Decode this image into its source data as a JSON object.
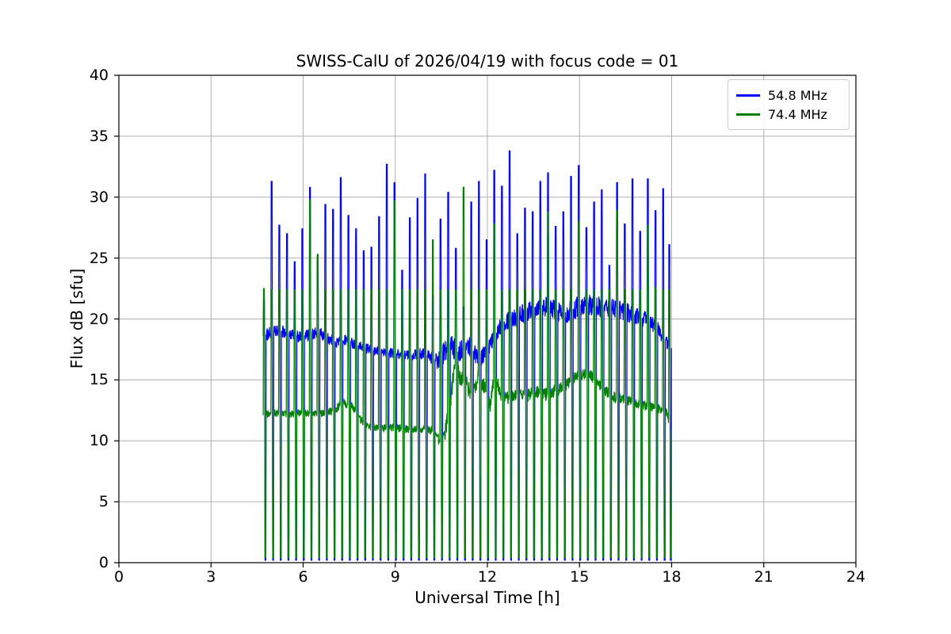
{
  "chart_data": {
    "type": "line",
    "title": "SWISS-CalU of 2026/04/19 with focus code = 01",
    "xlabel": "Universal Time [h]",
    "ylabel": "Flux dB [sfu]",
    "xlim": [
      0,
      24
    ],
    "ylim": [
      0,
      40
    ],
    "xticks": [
      0,
      3,
      6,
      9,
      12,
      15,
      18,
      21,
      24
    ],
    "yticks": [
      0,
      5,
      10,
      15,
      20,
      25,
      30,
      35,
      40
    ],
    "grid": true,
    "grid_color": "#b0b0b0",
    "background_color": "#ffffff",
    "axes_color": "#000000",
    "time_coverage_hours": {
      "start": 4.7,
      "end": 18.0
    },
    "legend": {
      "position": "upper right",
      "entries": [
        {
          "label": "54.8 MHz",
          "color": "#0000ff"
        },
        {
          "label": "74.4 MHz",
          "color": "#008000"
        }
      ]
    },
    "calibration_events": [
      [
        4.7,
        21.5,
        22.5
      ],
      [
        4.95,
        31.3,
        22.4
      ],
      [
        5.2,
        27.7,
        22.4
      ],
      [
        5.45,
        27.0,
        22.4
      ],
      [
        5.7,
        24.7,
        22.4
      ],
      [
        5.95,
        27.4,
        22.4
      ],
      [
        6.2,
        30.8,
        29.8
      ],
      [
        6.45,
        25.0,
        25.3
      ],
      [
        6.7,
        29.4,
        22.4
      ],
      [
        6.95,
        29.0,
        22.4
      ],
      [
        7.2,
        31.6,
        22.4
      ],
      [
        7.45,
        28.5,
        22.4
      ],
      [
        7.7,
        27.4,
        22.4
      ],
      [
        7.95,
        25.6,
        22.4
      ],
      [
        8.2,
        25.9,
        22.4
      ],
      [
        8.45,
        28.4,
        22.4
      ],
      [
        8.7,
        32.7,
        22.4
      ],
      [
        8.95,
        31.2,
        29.7
      ],
      [
        9.2,
        24.0,
        22.4
      ],
      [
        9.45,
        28.3,
        22.4
      ],
      [
        9.7,
        29.9,
        22.4
      ],
      [
        9.95,
        31.9,
        22.4
      ],
      [
        10.2,
        22.0,
        26.5
      ],
      [
        10.45,
        28.2,
        22.4
      ],
      [
        10.7,
        30.4,
        22.4
      ],
      [
        10.95,
        25.8,
        22.4
      ],
      [
        11.2,
        21.0,
        30.8
      ],
      [
        11.45,
        29.6,
        22.4
      ],
      [
        11.7,
        31.3,
        22.4
      ],
      [
        11.95,
        26.5,
        22.4
      ],
      [
        12.2,
        32.2,
        27.8
      ],
      [
        12.45,
        30.9,
        22.4
      ],
      [
        12.7,
        33.8,
        22.4
      ],
      [
        12.95,
        27.0,
        22.4
      ],
      [
        13.2,
        29.1,
        22.4
      ],
      [
        13.45,
        28.8,
        22.4
      ],
      [
        13.7,
        31.3,
        22.4
      ],
      [
        13.95,
        32.0,
        28.8
      ],
      [
        14.2,
        27.6,
        22.4
      ],
      [
        14.45,
        28.8,
        22.4
      ],
      [
        14.7,
        31.7,
        22.4
      ],
      [
        14.95,
        32.6,
        28.0
      ],
      [
        15.2,
        27.5,
        22.4
      ],
      [
        15.45,
        29.6,
        22.4
      ],
      [
        15.7,
        30.6,
        22.4
      ],
      [
        15.95,
        24.4,
        22.4
      ],
      [
        16.2,
        31.2,
        28.9
      ],
      [
        16.45,
        27.8,
        22.4
      ],
      [
        16.7,
        31.5,
        22.4
      ],
      [
        16.95,
        27.2,
        22.4
      ],
      [
        17.2,
        31.5,
        27.7
      ],
      [
        17.45,
        28.9,
        22.6
      ],
      [
        17.7,
        30.7,
        22.4
      ],
      [
        17.9,
        26.1,
        22.4
      ]
    ],
    "series": [
      {
        "name": "54.8 MHz",
        "color": "#0000ff",
        "start": 4.7,
        "end": 17.98,
        "event_peak_col": 1,
        "event_low": 0.2,
        "baseline_keypoints": [
          [
            4.7,
            18.6,
            0.5
          ],
          [
            5.0,
            18.9,
            0.5
          ],
          [
            5.3,
            19.0,
            0.5
          ],
          [
            5.6,
            18.7,
            0.45
          ],
          [
            5.9,
            18.5,
            0.45
          ],
          [
            6.2,
            18.7,
            0.5
          ],
          [
            6.5,
            18.9,
            0.5
          ],
          [
            6.8,
            18.4,
            0.45
          ],
          [
            7.1,
            18.1,
            0.45
          ],
          [
            7.4,
            18.3,
            0.45
          ],
          [
            7.7,
            17.9,
            0.4
          ],
          [
            8.0,
            17.6,
            0.4
          ],
          [
            8.3,
            17.4,
            0.4
          ],
          [
            8.6,
            17.3,
            0.4
          ],
          [
            8.9,
            17.2,
            0.4
          ],
          [
            9.2,
            17.1,
            0.4
          ],
          [
            9.5,
            17.0,
            0.4
          ],
          [
            9.8,
            17.2,
            0.45
          ],
          [
            10.1,
            17.0,
            0.5
          ],
          [
            10.4,
            16.5,
            0.7
          ],
          [
            10.6,
            17.3,
            0.9
          ],
          [
            10.8,
            18.0,
            0.9
          ],
          [
            11.0,
            17.2,
            0.9
          ],
          [
            11.2,
            17.5,
            0.8
          ],
          [
            11.4,
            17.8,
            0.8
          ],
          [
            11.6,
            17.2,
            0.8
          ],
          [
            11.8,
            16.9,
            0.7
          ],
          [
            12.0,
            17.5,
            0.7
          ],
          [
            12.2,
            18.3,
            0.7
          ],
          [
            12.4,
            19.4,
            0.7
          ],
          [
            12.6,
            19.9,
            0.8
          ],
          [
            12.8,
            20.1,
            0.85
          ],
          [
            13.0,
            20.2,
            0.85
          ],
          [
            13.2,
            20.5,
            0.85
          ],
          [
            13.4,
            20.8,
            0.85
          ],
          [
            13.6,
            21.0,
            0.85
          ],
          [
            13.8,
            21.1,
            0.85
          ],
          [
            14.0,
            20.9,
            0.85
          ],
          [
            14.2,
            20.8,
            0.85
          ],
          [
            14.4,
            20.6,
            0.85
          ],
          [
            14.6,
            20.5,
            0.85
          ],
          [
            14.8,
            20.8,
            0.85
          ],
          [
            15.0,
            21.1,
            0.85
          ],
          [
            15.2,
            21.3,
            0.85
          ],
          [
            15.4,
            21.1,
            0.85
          ],
          [
            15.6,
            21.0,
            0.85
          ],
          [
            15.8,
            20.9,
            0.8
          ],
          [
            16.0,
            21.0,
            0.8
          ],
          [
            16.2,
            20.9,
            0.8
          ],
          [
            16.4,
            20.7,
            0.75
          ],
          [
            16.6,
            20.5,
            0.75
          ],
          [
            16.8,
            20.3,
            0.7
          ],
          [
            17.0,
            20.1,
            0.7
          ],
          [
            17.2,
            19.9,
            0.7
          ],
          [
            17.4,
            19.6,
            0.65
          ],
          [
            17.6,
            19.0,
            0.6
          ],
          [
            17.8,
            18.2,
            0.55
          ],
          [
            17.98,
            17.6,
            0.5
          ]
        ]
      },
      {
        "name": "74.4 MHz",
        "color": "#008000",
        "start": 4.7,
        "end": 17.95,
        "event_peak_col": 2,
        "event_low": 0.4,
        "baseline_keypoints": [
          [
            4.7,
            12.1,
            0.3
          ],
          [
            5.0,
            12.3,
            0.3
          ],
          [
            5.5,
            12.2,
            0.3
          ],
          [
            6.0,
            12.3,
            0.3
          ],
          [
            6.5,
            12.2,
            0.3
          ],
          [
            7.0,
            12.5,
            0.35
          ],
          [
            7.3,
            13.1,
            0.35
          ],
          [
            7.6,
            12.9,
            0.35
          ],
          [
            7.85,
            11.8,
            0.3
          ],
          [
            8.1,
            11.2,
            0.3
          ],
          [
            8.5,
            11.0,
            0.3
          ],
          [
            9.0,
            11.1,
            0.3
          ],
          [
            9.5,
            10.9,
            0.3
          ],
          [
            9.9,
            11.0,
            0.3
          ],
          [
            10.3,
            10.8,
            0.35
          ],
          [
            10.5,
            9.6,
            0.5
          ],
          [
            10.65,
            11.0,
            0.7
          ],
          [
            10.8,
            13.5,
            0.9
          ],
          [
            10.95,
            16.3,
            0.8
          ],
          [
            11.1,
            15.2,
            0.7
          ],
          [
            11.3,
            14.8,
            0.7
          ],
          [
            11.5,
            13.6,
            0.7
          ],
          [
            11.7,
            15.3,
            0.7
          ],
          [
            11.9,
            14.4,
            0.7
          ],
          [
            12.1,
            12.9,
            0.6
          ],
          [
            12.25,
            15.8,
            0.7
          ],
          [
            12.4,
            13.8,
            0.6
          ],
          [
            12.7,
            13.5,
            0.5
          ],
          [
            13.0,
            13.9,
            0.5
          ],
          [
            13.3,
            13.7,
            0.5
          ],
          [
            13.6,
            14.0,
            0.5
          ],
          [
            13.9,
            13.8,
            0.5
          ],
          [
            14.2,
            14.1,
            0.5
          ],
          [
            14.5,
            14.4,
            0.5
          ],
          [
            14.8,
            15.1,
            0.5
          ],
          [
            15.1,
            15.4,
            0.5
          ],
          [
            15.3,
            15.6,
            0.5
          ],
          [
            15.5,
            14.8,
            0.5
          ],
          [
            15.8,
            14.2,
            0.45
          ],
          [
            16.1,
            13.6,
            0.45
          ],
          [
            16.4,
            13.4,
            0.4
          ],
          [
            16.7,
            13.2,
            0.4
          ],
          [
            17.0,
            13.0,
            0.4
          ],
          [
            17.3,
            12.8,
            0.4
          ],
          [
            17.6,
            12.6,
            0.35
          ],
          [
            17.85,
            12.3,
            0.35
          ],
          [
            17.95,
            10.9,
            0.3
          ]
        ]
      }
    ]
  }
}
